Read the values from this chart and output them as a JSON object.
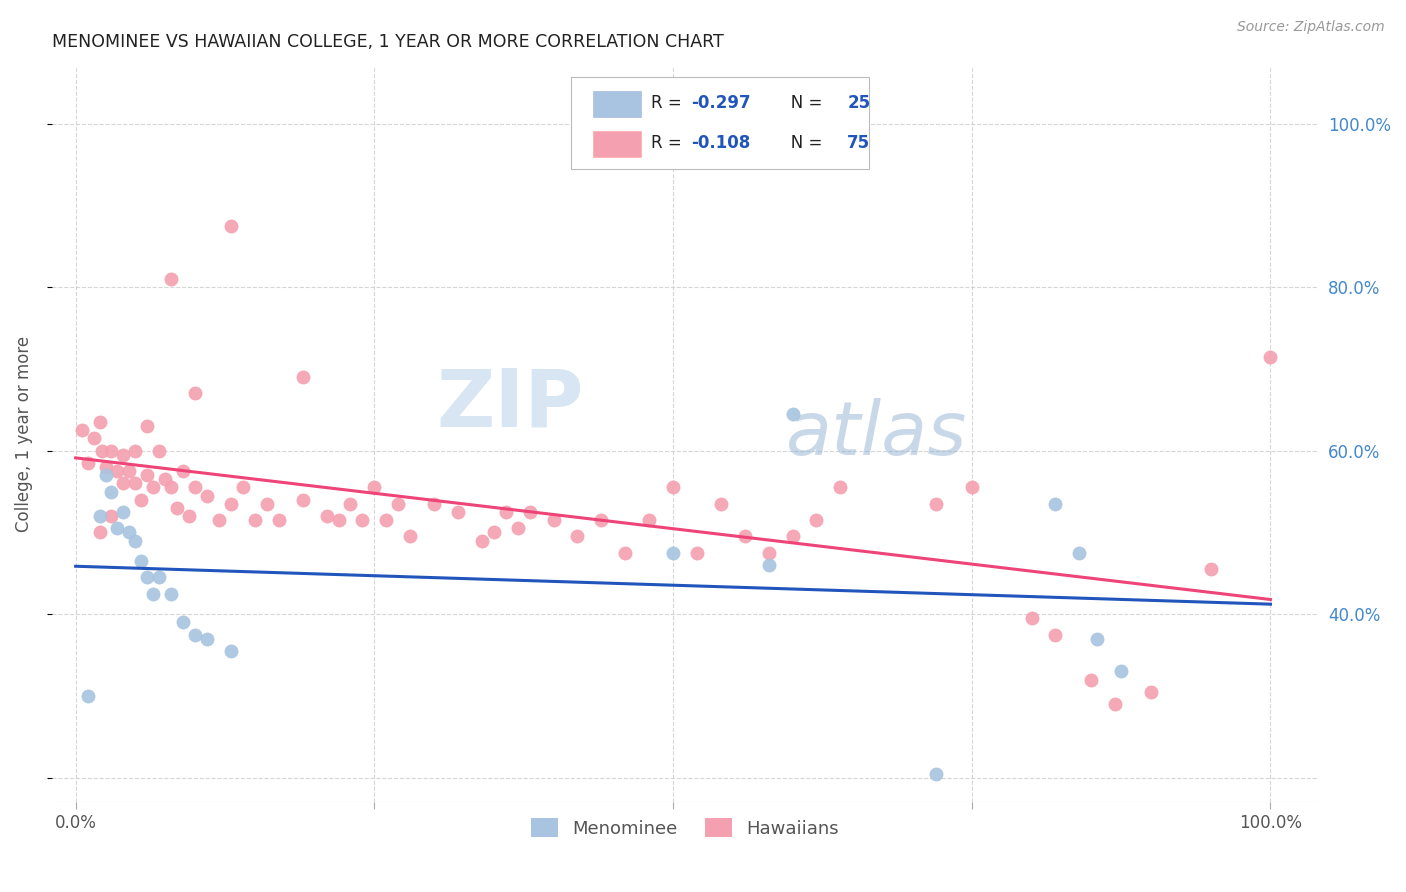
{
  "title": "MENOMINEE VS HAWAIIAN COLLEGE, 1 YEAR OR MORE CORRELATION CHART",
  "source": "Source: ZipAtlas.com",
  "ylabel": "College, 1 year or more",
  "watermark_zip": "ZIP",
  "watermark_atlas": "atlas",
  "legend_r_blue": "R = -0.297",
  "legend_n_blue": "N = 25",
  "legend_r_pink": "R = -0.108",
  "legend_n_pink": "N = 75",
  "blue_scatter_color": "#A8C4E0",
  "pink_scatter_color": "#F4A0B0",
  "line_blue_color": "#2255BB",
  "line_pink_color": "#EE4477",
  "right_tick_color": "#4488CC",
  "xlim": [
    -0.02,
    1.04
  ],
  "ylim": [
    0.17,
    1.07
  ],
  "yticks": [
    0.2,
    0.4,
    0.6,
    0.8,
    1.0
  ],
  "ytick_labels": [
    "",
    "40.0%",
    "60.0%",
    "80.0%",
    "100.0%"
  ],
  "xticks": [
    0.0,
    0.25,
    0.5,
    0.75,
    1.0
  ],
  "xtick_labels": [
    "0.0%",
    "",
    "",
    "",
    "100.0%"
  ],
  "menominee_x": [
    0.01,
    0.02,
    0.025,
    0.03,
    0.035,
    0.04,
    0.045,
    0.05,
    0.055,
    0.06,
    0.065,
    0.07,
    0.08,
    0.09,
    0.1,
    0.11,
    0.13,
    0.5,
    0.6,
    0.82,
    0.84,
    0.855,
    0.875,
    0.58,
    0.72
  ],
  "menominee_y": [
    0.3,
    0.52,
    0.57,
    0.55,
    0.505,
    0.525,
    0.5,
    0.49,
    0.465,
    0.445,
    0.425,
    0.445,
    0.425,
    0.39,
    0.375,
    0.37,
    0.355,
    0.475,
    0.645,
    0.535,
    0.475,
    0.37,
    0.33,
    0.46,
    0.205
  ],
  "hawaiians_x": [
    0.005,
    0.01,
    0.015,
    0.02,
    0.022,
    0.025,
    0.03,
    0.035,
    0.04,
    0.045,
    0.05,
    0.055,
    0.06,
    0.065,
    0.07,
    0.075,
    0.08,
    0.085,
    0.09,
    0.095,
    0.1,
    0.11,
    0.12,
    0.13,
    0.14,
    0.15,
    0.16,
    0.17,
    0.19,
    0.21,
    0.22,
    0.23,
    0.24,
    0.25,
    0.26,
    0.27,
    0.28,
    0.3,
    0.32,
    0.34,
    0.35,
    0.36,
    0.37,
    0.38,
    0.4,
    0.42,
    0.44,
    0.46,
    0.48,
    0.5,
    0.52,
    0.54,
    0.56,
    0.58,
    0.6,
    0.62,
    0.64,
    0.72,
    0.75,
    0.8,
    0.82,
    0.85,
    0.87,
    0.9,
    0.95,
    1.0,
    0.13,
    0.08,
    0.19,
    0.1,
    0.06,
    0.05,
    0.04,
    0.03,
    0.02
  ],
  "hawaiians_y": [
    0.625,
    0.585,
    0.615,
    0.635,
    0.6,
    0.58,
    0.6,
    0.575,
    0.595,
    0.575,
    0.56,
    0.54,
    0.57,
    0.555,
    0.6,
    0.565,
    0.555,
    0.53,
    0.575,
    0.52,
    0.555,
    0.545,
    0.515,
    0.535,
    0.555,
    0.515,
    0.535,
    0.515,
    0.54,
    0.52,
    0.515,
    0.535,
    0.515,
    0.555,
    0.515,
    0.535,
    0.495,
    0.535,
    0.525,
    0.49,
    0.5,
    0.525,
    0.505,
    0.525,
    0.515,
    0.495,
    0.515,
    0.475,
    0.515,
    0.555,
    0.475,
    0.535,
    0.495,
    0.475,
    0.495,
    0.515,
    0.555,
    0.535,
    0.555,
    0.395,
    0.375,
    0.32,
    0.29,
    0.305,
    0.455,
    0.715,
    0.875,
    0.81,
    0.69,
    0.67,
    0.63,
    0.6,
    0.56,
    0.52,
    0.5
  ]
}
